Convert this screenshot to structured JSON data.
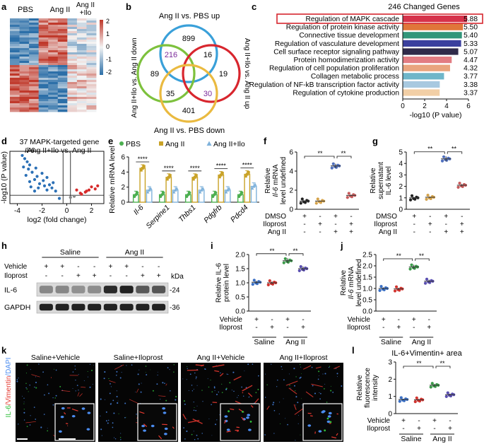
{
  "panel_labels": [
    "a",
    "b",
    "c",
    "d",
    "e",
    "f",
    "g",
    "h",
    "i",
    "j",
    "k",
    "l"
  ],
  "heatmap": {
    "columns": [
      "PBS",
      "Ang II",
      "Ang II\n+Ilo"
    ],
    "col1": "PBS",
    "col2": "Ang II",
    "col3a": "Ang II",
    "col3b": "+Ilo",
    "scale": [
      "2",
      "1",
      "0",
      "-1",
      "-2"
    ],
    "colors": {
      "high": "#c0392b",
      "low": "#2c6fa8"
    }
  },
  "venn": {
    "labels": {
      "top": "Ang II vs. PBS up",
      "bottom": "Ang II vs. PBS down",
      "left": "Ang II+Ilo vs. Ang II down",
      "right": "Ang II+Ilo vs. Ang II up"
    },
    "numbers": {
      "n899": "899",
      "n89": "89",
      "n216": "216",
      "n16": "16",
      "n19": "19",
      "n35": "35",
      "n30": "30",
      "n401": "401"
    },
    "colors": {
      "blue": "#3aa0d9",
      "green": "#7dc13d",
      "red": "#d8262e",
      "yellow": "#eaba40"
    }
  },
  "chart_data": [
    {
      "id": "c",
      "type": "bar",
      "orientation": "horizontal",
      "title": "246 Changed Genes",
      "xlabel": "-log10 (P value)",
      "xlim": [
        0,
        6
      ],
      "ticks": [
        "0",
        "2",
        "4",
        "6"
      ],
      "categories": [
        "Regulation of MAPK cascade",
        "Regulation of protein kinase activity",
        "Connective tissue development",
        "Regulation of vasculature development",
        "Cell surface receptor signaling pathway",
        "Protein homodimerization activity",
        "Regulation of cell population proliferation",
        "Collagen metabolic process",
        "Regulation of NF-kB transcription factor activity",
        "Regulation of cytokine production"
      ],
      "values": [
        5.88,
        5.5,
        5.4,
        5.33,
        5.07,
        4.47,
        4.32,
        3.77,
        3.38,
        3.37
      ],
      "value_labels": [
        "5.88",
        "5.50",
        "5.40",
        "5.33",
        "5.07",
        "4.47",
        "4.32",
        "3.77",
        "3.38",
        "3.37"
      ],
      "colors": [
        "#d6324a",
        "#e0763a",
        "#32967a",
        "#3a3f9e",
        "#2f2a4a",
        "#e27c82",
        "#e9a47e",
        "#6fb6c9",
        "#a8c9e0",
        "#f2cfa6"
      ]
    },
    {
      "id": "d",
      "type": "scatter",
      "title": "37 MAPK-targeted gene",
      "subtitle": "Ang II+Ilo vs. Ang II",
      "xlabel": "log2 (fold change)",
      "ylabel": "-log10 (P value)",
      "xticks": [
        "-4",
        "-2",
        "0",
        "2"
      ],
      "annotation": "Il-6",
      "blue": [
        [
          -3.6,
          4.6
        ],
        [
          -3.4,
          4.3
        ],
        [
          -3.2,
          4.0
        ],
        [
          -3.0,
          3.7
        ],
        [
          -3.5,
          3.5
        ],
        [
          -3.1,
          3.3
        ],
        [
          -2.5,
          3.4
        ],
        [
          -2.8,
          3.0
        ],
        [
          -3.3,
          2.7
        ],
        [
          -2.4,
          2.6
        ],
        [
          -2.0,
          2.9
        ],
        [
          -2.6,
          2.3
        ],
        [
          -1.9,
          2.2
        ],
        [
          -1.6,
          2.5
        ],
        [
          -3.0,
          2.1
        ],
        [
          -2.2,
          1.9
        ],
        [
          -1.4,
          1.8
        ],
        [
          -1.8,
          1.7
        ],
        [
          -2.9,
          1.6
        ],
        [
          -2.3,
          1.5
        ],
        [
          -1.2,
          1.5
        ],
        [
          -1.6,
          1.3
        ],
        [
          -0.9,
          1.2
        ],
        [
          -2.6,
          1.2
        ],
        [
          -1.1,
          2.0
        ],
        [
          -0.6,
          0.5
        ]
      ],
      "red": [
        [
          0.8,
          1.3
        ],
        [
          1.1,
          1.0
        ],
        [
          1.5,
          1.1
        ],
        [
          1.2,
          0.9
        ],
        [
          1.8,
          1.3
        ],
        [
          2.0,
          1.6
        ],
        [
          2.3,
          1.4
        ],
        [
          2.5,
          1.7
        ],
        [
          1.6,
          1.2
        ]
      ],
      "grey": [
        [
          0.3,
          0.6
        ],
        [
          0.6,
          0.7
        ]
      ]
    },
    {
      "id": "e",
      "type": "bar",
      "ylabel": "Relative mRNA level",
      "yticks": [
        "0",
        "2",
        "4",
        "6"
      ],
      "ylim": [
        0,
        6
      ],
      "categories": [
        "Il-6",
        "Serpine1",
        "Thbs1",
        "Pdgfrb",
        "Pdcd4"
      ],
      "series": [
        {
          "name": "PBS",
          "values": [
            1.0,
            1.0,
            1.0,
            1.0,
            1.0
          ]
        },
        {
          "name": "Ang II",
          "values": [
            4.5,
            3.3,
            3.3,
            3.6,
            3.7
          ]
        },
        {
          "name": "Ang II+Ilo",
          "values": [
            1.6,
            1.6,
            1.6,
            1.6,
            2.1
          ]
        }
      ],
      "colors": [
        "#4caf50",
        "#c9a227",
        "#7fb2db"
      ],
      "sig": [
        "****",
        "****",
        "****",
        "****",
        "****"
      ]
    },
    {
      "id": "f",
      "type": "scatter",
      "ylabel": "Relative Il-6 mRNA level",
      "yticks": [
        "0",
        "2",
        "4",
        "6"
      ],
      "ylim": [
        0,
        7
      ],
      "groups": [
        "DMSO",
        "Iloprost",
        "Ang II",
        "Ang II+Iloprost"
      ],
      "values": [
        1.0,
        1.0,
        5.3,
        1.7
      ],
      "colors": [
        "#222",
        "#d4a24a",
        "#4f6fbd",
        "#c65b5b"
      ],
      "rows": {
        "r1": "DMSO",
        "r2": "Iloprost",
        "r3": "Ang II"
      },
      "signs": {
        "r1": [
          "+",
          "-",
          "+",
          "-"
        ],
        "r2": [
          "-",
          "+",
          "-",
          "+"
        ],
        "r3": [
          "-",
          "-",
          "+",
          "+"
        ]
      },
      "sig": [
        "**",
        "**"
      ]
    },
    {
      "id": "g",
      "type": "scatter",
      "ylabel": "Relative supernatant IL-6 level",
      "yticks": [
        "0",
        "1",
        "2",
        "3",
        "4",
        "5"
      ],
      "ylim": [
        0,
        5
      ],
      "groups": [
        "DMSO",
        "Iloprost",
        "Ang II",
        "Ang II+Iloprost"
      ],
      "values": [
        1.0,
        1.05,
        4.4,
        2.1
      ],
      "colors": [
        "#222",
        "#d4a24a",
        "#4f6fbd",
        "#c65b5b"
      ],
      "rows": {
        "r1": "DMSO",
        "r2": "Iloprost",
        "r3": "Ang II"
      },
      "signs": {
        "r1": [
          "+",
          "-",
          "+",
          "-"
        ],
        "r2": [
          "-",
          "+",
          "-",
          "+"
        ],
        "r3": [
          "-",
          "-",
          "+",
          "+"
        ]
      },
      "sig": [
        "**",
        "**"
      ]
    },
    {
      "id": "i",
      "type": "scatter",
      "ylabel": "Relative IL-6 protein level",
      "yticks": [
        "0.0",
        "0.5",
        "1.0",
        "1.5",
        "2.0"
      ],
      "ylim": [
        0,
        2
      ],
      "groups": [
        "Saline+Vehicle",
        "Saline+Iloprost",
        "Ang II+Vehicle",
        "Ang II+Iloprost"
      ],
      "values": [
        1.02,
        1.0,
        1.78,
        1.5
      ],
      "colors": [
        "#3a6fc4",
        "#d1342f",
        "#3b9b4a",
        "#5a4fb0"
      ],
      "rows": {
        "r1": "Vehicle",
        "r2": "Iloprost"
      },
      "signs": {
        "r1": [
          "+",
          "-",
          "+",
          "-"
        ],
        "r2": [
          "-",
          "+",
          "-",
          "+"
        ]
      },
      "group_labels": [
        "Saline",
        "Ang II"
      ],
      "sig": [
        "**",
        "**"
      ]
    },
    {
      "id": "j",
      "type": "scatter",
      "ylabel": "Relative Il-6 mRNA level",
      "yticks": [
        "0.0",
        "0.5",
        "1.0",
        "1.5",
        "2.0",
        "2.5"
      ],
      "ylim": [
        0,
        2.5
      ],
      "groups": [
        "Saline+Vehicle",
        "Saline+Iloprost",
        "Ang II+Vehicle",
        "Ang II+Iloprost"
      ],
      "values": [
        1.0,
        0.98,
        1.95,
        1.32
      ],
      "colors": [
        "#3a6fc4",
        "#d1342f",
        "#3b9b4a",
        "#5a4fb0"
      ],
      "rows": {
        "r1": "Vehicle",
        "r2": "Iloprost"
      },
      "signs": {
        "r1": [
          "+",
          "-",
          "+",
          "-"
        ],
        "r2": [
          "-",
          "+",
          "-",
          "+"
        ]
      },
      "group_labels": [
        "Saline",
        "Ang II"
      ],
      "sig": [
        "**",
        "**"
      ]
    },
    {
      "id": "l",
      "type": "scatter",
      "title": "IL-6+Vimentin+ area",
      "ylabel": "Relative fluorescence intensity",
      "yticks": [
        "0",
        "1",
        "2",
        "3"
      ],
      "ylim": [
        0,
        3
      ],
      "groups": [
        "Saline+Vehicle",
        "Saline+Iloprost",
        "Ang II+Vehicle",
        "Ang II+Iloprost"
      ],
      "values": [
        0.82,
        0.8,
        1.65,
        1.1
      ],
      "colors": [
        "#3a6fc4",
        "#d1342f",
        "#3b9b4a",
        "#5a4fb0"
      ],
      "rows": {
        "r1": "Vehicle",
        "r2": "Iloprost"
      },
      "signs": {
        "r1": [
          "+",
          "-",
          "+",
          "-"
        ],
        "r2": [
          "-",
          "+",
          "-",
          "+"
        ]
      },
      "group_labels": [
        "Saline",
        "Ang II"
      ],
      "sig": [
        "**",
        "**"
      ]
    }
  ],
  "blot": {
    "groups": [
      "Saline",
      "Ang II"
    ],
    "rows": {
      "r1": "Vehicle",
      "r2": "Iloprost"
    },
    "signs": {
      "r1": [
        "+",
        "+",
        "-",
        "-",
        "+",
        "+",
        "-",
        "-"
      ],
      "r2": [
        "-",
        "-",
        "+",
        "+",
        "-",
        "-",
        "+",
        "+"
      ]
    },
    "kda": "kDa",
    "bands": [
      {
        "name": "IL-6",
        "size": "-24"
      },
      {
        "name": "GAPDH",
        "size": "-36"
      }
    ]
  },
  "micro": {
    "titles": [
      "Saline+Vehicle",
      "Saline+Iloprost",
      "Ang II+Vehicle",
      "Ang II+Iloprost"
    ],
    "side_label": {
      "a": "IL-6",
      "b": "/Vimentin",
      "c": "/DAPI"
    },
    "colors": {
      "il6": "#2fbf3a",
      "vim": "#e5382f",
      "dapi": "#4b8cf0"
    }
  }
}
